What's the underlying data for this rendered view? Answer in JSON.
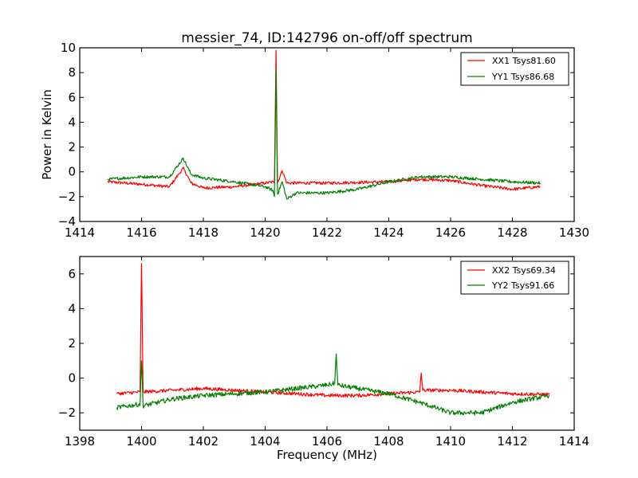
{
  "title": "messier_74, ID:142796 on-off/off spectrum",
  "chart_data": [
    {
      "type": "line",
      "title": "messier_74, ID:142796 on-off/off spectrum",
      "xlabel": "",
      "ylabel": "Power in Kelvin",
      "xlim": [
        1414,
        1430
      ],
      "ylim": [
        -4,
        10
      ],
      "xticks": [
        "1414",
        "1416",
        "1418",
        "1420",
        "1422",
        "1424",
        "1426",
        "1428",
        "1430"
      ],
      "yticks": [
        "−4",
        "−2",
        "0",
        "2",
        "4",
        "6",
        "8",
        "10"
      ],
      "grid": false,
      "legend_position": "top-right",
      "x_range": [
        1414.9,
        1428.9
      ],
      "series": [
        {
          "name": "XX1 Tsys81.60",
          "color": "#ff0000",
          "anchors": [
            [
              1414.9,
              -0.8
            ],
            [
              1416.0,
              -1.0
            ],
            [
              1416.9,
              -1.2
            ],
            [
              1417.2,
              -0.2
            ],
            [
              1417.35,
              0.3
            ],
            [
              1417.6,
              -0.9
            ],
            [
              1418.0,
              -1.3
            ],
            [
              1419.0,
              -1.2
            ],
            [
              1420.0,
              -0.9
            ],
            [
              1420.3,
              -0.8
            ],
            [
              1420.35,
              9.8
            ],
            [
              1420.4,
              -0.9
            ],
            [
              1420.55,
              0.1
            ],
            [
              1420.7,
              -0.9
            ],
            [
              1422.0,
              -0.9
            ],
            [
              1424.0,
              -0.8
            ],
            [
              1425.0,
              -0.6
            ],
            [
              1426.0,
              -0.7
            ],
            [
              1427.0,
              -1.1
            ],
            [
              1428.0,
              -1.4
            ],
            [
              1428.9,
              -1.2
            ]
          ],
          "noise": 0.12
        },
        {
          "name": "YY1 Tsys86.68",
          "color": "#008000",
          "anchors": [
            [
              1414.9,
              -0.6
            ],
            [
              1416.0,
              -0.4
            ],
            [
              1416.9,
              -0.4
            ],
            [
              1417.2,
              0.6
            ],
            [
              1417.35,
              1.1
            ],
            [
              1417.6,
              -0.2
            ],
            [
              1418.0,
              -0.5
            ],
            [
              1419.0,
              -0.8
            ],
            [
              1420.0,
              -1.2
            ],
            [
              1420.25,
              -1.5
            ],
            [
              1420.3,
              -2.0
            ],
            [
              1420.35,
              8.2
            ],
            [
              1420.4,
              -1.8
            ],
            [
              1420.55,
              -0.8
            ],
            [
              1420.7,
              -2.2
            ],
            [
              1421.0,
              -1.7
            ],
            [
              1422.0,
              -1.7
            ],
            [
              1423.0,
              -1.4
            ],
            [
              1424.0,
              -0.8
            ],
            [
              1425.0,
              -0.4
            ],
            [
              1426.0,
              -0.4
            ],
            [
              1427.0,
              -0.6
            ],
            [
              1428.0,
              -0.8
            ],
            [
              1428.9,
              -0.9
            ]
          ],
          "noise": 0.12
        }
      ]
    },
    {
      "type": "line",
      "title": "",
      "xlabel": "Frequency (MHz)",
      "ylabel": "",
      "xlim": [
        1398,
        1414
      ],
      "ylim": [
        -3,
        7
      ],
      "xticks": [
        "1398",
        "1400",
        "1402",
        "1404",
        "1406",
        "1408",
        "1410",
        "1412",
        "1414"
      ],
      "yticks": [
        "−2",
        "0",
        "2",
        "4",
        "6"
      ],
      "grid": false,
      "legend_position": "top-right",
      "x_range": [
        1399.2,
        1413.2
      ],
      "series": [
        {
          "name": "XX2 Tsys69.34",
          "color": "#ff0000",
          "anchors": [
            [
              1399.2,
              -0.9
            ],
            [
              1399.95,
              -0.8
            ],
            [
              1400.0,
              6.6
            ],
            [
              1400.05,
              -0.8
            ],
            [
              1401.0,
              -0.7
            ],
            [
              1402.0,
              -0.6
            ],
            [
              1403.0,
              -0.7
            ],
            [
              1404.0,
              -0.8
            ],
            [
              1405.0,
              -0.9
            ],
            [
              1406.0,
              -1.0
            ],
            [
              1407.0,
              -1.0
            ],
            [
              1408.0,
              -0.9
            ],
            [
              1409.0,
              -0.8
            ],
            [
              1409.05,
              0.3
            ],
            [
              1409.1,
              -0.7
            ],
            [
              1410.0,
              -0.7
            ],
            [
              1411.0,
              -0.8
            ],
            [
              1412.0,
              -0.9
            ],
            [
              1413.2,
              -0.95
            ]
          ],
          "noise": 0.1
        },
        {
          "name": "YY2 Tsys91.66",
          "color": "#008000",
          "anchors": [
            [
              1399.2,
              -1.7
            ],
            [
              1399.95,
              -1.5
            ],
            [
              1400.0,
              1.0
            ],
            [
              1400.05,
              -1.6
            ],
            [
              1401.0,
              -1.2
            ],
            [
              1402.0,
              -1.0
            ],
            [
              1403.0,
              -0.9
            ],
            [
              1404.0,
              -0.8
            ],
            [
              1405.0,
              -0.6
            ],
            [
              1406.0,
              -0.4
            ],
            [
              1406.25,
              -0.3
            ],
            [
              1406.3,
              1.4
            ],
            [
              1406.35,
              -0.4
            ],
            [
              1407.0,
              -0.6
            ],
            [
              1408.0,
              -0.9
            ],
            [
              1409.0,
              -1.4
            ],
            [
              1410.0,
              -2.0
            ],
            [
              1411.0,
              -2.0
            ],
            [
              1412.0,
              -1.4
            ],
            [
              1413.2,
              -1.0
            ]
          ],
          "noise": 0.13
        }
      ]
    }
  ]
}
